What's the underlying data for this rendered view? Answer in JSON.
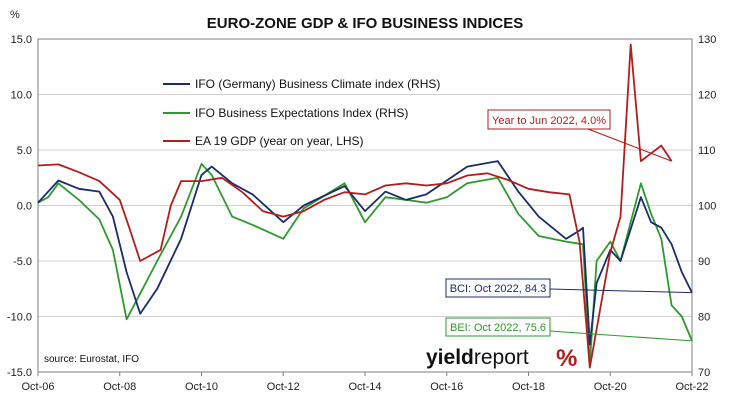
{
  "chart_data": {
    "type": "line",
    "title": "EURO-ZONE GDP & IFO BUSINESS INDICES",
    "left_axis": {
      "unit_label": "%",
      "ylim": [
        -15.0,
        15.0
      ],
      "ticks": [
        "15.0",
        "10.0",
        "5.0",
        "0.0",
        "-5.0",
        "-10.0",
        "-15.0"
      ]
    },
    "right_axis": {
      "ylim": [
        70,
        130
      ],
      "ticks": [
        "130",
        "120",
        "110",
        "100",
        "90",
        "80",
        "70"
      ]
    },
    "x_ticks": [
      "Oct-06",
      "Oct-08",
      "Oct-10",
      "Oct-12",
      "Oct-14",
      "Oct-16",
      "Oct-18",
      "Oct-20",
      "Oct-22"
    ],
    "grid": "horizontal",
    "legend_placement": "top-left",
    "series": [
      {
        "name": "IFO (Germany) Business Climate index (RHS)",
        "axis": "right",
        "color": "#1a2d6b",
        "points": [
          [
            "Oct-06",
            100.5
          ],
          [
            "Apr-07",
            104.5
          ],
          [
            "Oct-07",
            103.0
          ],
          [
            "Apr-08",
            102.5
          ],
          [
            "Aug-08",
            98.0
          ],
          [
            "Dec-08",
            88.0
          ],
          [
            "Apr-09",
            80.5
          ],
          [
            "Sep-09",
            85.0
          ],
          [
            "Apr-10",
            94.0
          ],
          [
            "Oct-10",
            105.5
          ],
          [
            "Jan-11",
            107.0
          ],
          [
            "Jul-11",
            104.0
          ],
          [
            "Jan-12",
            102.0
          ],
          [
            "Oct-12",
            97.0
          ],
          [
            "Apr-13",
            100.0
          ],
          [
            "Apr-14",
            103.5
          ],
          [
            "Oct-14",
            99.0
          ],
          [
            "Apr-15",
            102.5
          ],
          [
            "Oct-15",
            101.0
          ],
          [
            "Apr-16",
            102.0
          ],
          [
            "Oct-16",
            104.5
          ],
          [
            "Apr-17",
            107.0
          ],
          [
            "Jan-18",
            108.0
          ],
          [
            "Jul-18",
            102.5
          ],
          [
            "Jan-19",
            98.0
          ],
          [
            "Sep-19",
            94.0
          ],
          [
            "Jan-20",
            95.5
          ],
          [
            "Feb-20",
            96.0
          ],
          [
            "Apr-20",
            75.0
          ],
          [
            "Jun-20",
            86.0
          ],
          [
            "Oct-20",
            92.0
          ],
          [
            "Jan-21",
            90.0
          ],
          [
            "Jul-21",
            101.5
          ],
          [
            "Oct-21",
            97.0
          ],
          [
            "Jan-22",
            96.0
          ],
          [
            "Apr-22",
            93.0
          ],
          [
            "Jul-22",
            88.0
          ],
          [
            "Oct-22",
            84.3
          ]
        ]
      },
      {
        "name": "IFO Business Expectations Index (RHS)",
        "axis": "right",
        "color": "#2e9a2e",
        "points": [
          [
            "Oct-06",
            100.5
          ],
          [
            "Jan-07",
            101.5
          ],
          [
            "Apr-07",
            104.0
          ],
          [
            "Oct-07",
            101.0
          ],
          [
            "Apr-08",
            97.5
          ],
          [
            "Aug-08",
            92.0
          ],
          [
            "Dec-08",
            79.5
          ],
          [
            "Mar-09",
            83.0
          ],
          [
            "Sep-09",
            90.0
          ],
          [
            "Apr-10",
            98.0
          ],
          [
            "Oct-10",
            107.5
          ],
          [
            "Jan-11",
            105.5
          ],
          [
            "Jul-11",
            98.0
          ],
          [
            "Jan-12",
            96.5
          ],
          [
            "Oct-12",
            94.0
          ],
          [
            "Apr-13",
            99.5
          ],
          [
            "Apr-14",
            104.0
          ],
          [
            "Oct-14",
            97.0
          ],
          [
            "Apr-15",
            101.5
          ],
          [
            "Oct-15",
            101.0
          ],
          [
            "Apr-16",
            100.5
          ],
          [
            "Oct-16",
            101.5
          ],
          [
            "Apr-17",
            104.0
          ],
          [
            "Jan-18",
            105.0
          ],
          [
            "Jul-18",
            98.5
          ],
          [
            "Jan-19",
            94.5
          ],
          [
            "Sep-19",
            93.5
          ],
          [
            "Feb-20",
            93.0
          ],
          [
            "Apr-20",
            71.5
          ],
          [
            "Jun-20",
            90.0
          ],
          [
            "Oct-20",
            93.5
          ],
          [
            "Jan-21",
            90.0
          ],
          [
            "Jul-21",
            104.0
          ],
          [
            "Oct-21",
            98.5
          ],
          [
            "Jan-22",
            94.0
          ],
          [
            "Apr-22",
            82.0
          ],
          [
            "Jul-22",
            80.0
          ],
          [
            "Oct-22",
            75.6
          ]
        ]
      },
      {
        "name": "EA 19 GDP (year on year, LHS)",
        "axis": "left",
        "color": "#b51c1c",
        "points": [
          [
            "Oct-06",
            3.6
          ],
          [
            "Apr-07",
            3.7
          ],
          [
            "Oct-07",
            3.0
          ],
          [
            "Apr-08",
            2.2
          ],
          [
            "Oct-08",
            0.5
          ],
          [
            "Jan-09",
            -2.2
          ],
          [
            "Apr-09",
            -5.0
          ],
          [
            "Oct-09",
            -4.0
          ],
          [
            "Jan-10",
            0.0
          ],
          [
            "Apr-10",
            2.2
          ],
          [
            "Oct-10",
            2.2
          ],
          [
            "Apr-11",
            2.5
          ],
          [
            "Oct-11",
            1.2
          ],
          [
            "Apr-12",
            -0.5
          ],
          [
            "Oct-12",
            -1.0
          ],
          [
            "Apr-13",
            -0.5
          ],
          [
            "Oct-13",
            0.5
          ],
          [
            "Apr-14",
            1.2
          ],
          [
            "Oct-14",
            1.0
          ],
          [
            "Apr-15",
            1.8
          ],
          [
            "Oct-15",
            2.0
          ],
          [
            "Apr-16",
            1.8
          ],
          [
            "Oct-16",
            2.0
          ],
          [
            "Apr-17",
            2.7
          ],
          [
            "Oct-17",
            2.9
          ],
          [
            "Apr-18",
            2.3
          ],
          [
            "Oct-18",
            1.5
          ],
          [
            "Apr-19",
            1.2
          ],
          [
            "Oct-19",
            1.0
          ],
          [
            "Jan-20",
            -3.3
          ],
          [
            "Apr-20",
            -14.6
          ],
          [
            "Oct-20",
            -4.2
          ],
          [
            "Jan-21",
            -1.0
          ],
          [
            "Apr-21",
            14.5
          ],
          [
            "Jul-21",
            4.0
          ],
          [
            "Oct-21",
            4.7
          ],
          [
            "Jan-22",
            5.4
          ],
          [
            "Apr-22",
            4.0
          ]
        ]
      }
    ],
    "annotations": [
      {
        "text": "Year to Jun 2022, 4.0%",
        "color": "#b51c1c",
        "target_series": 2
      },
      {
        "text": "BCI: Oct 2022, 84.3",
        "color": "#1a2d6b",
        "target_series": 0
      },
      {
        "text": "BEI: Oct 2022, 75.6",
        "color": "#2e9a2e",
        "target_series": 1
      }
    ],
    "source": "source: Eurostat, IFO",
    "brand": {
      "part1": "yield",
      "part2": "report",
      "mark": "%"
    }
  }
}
